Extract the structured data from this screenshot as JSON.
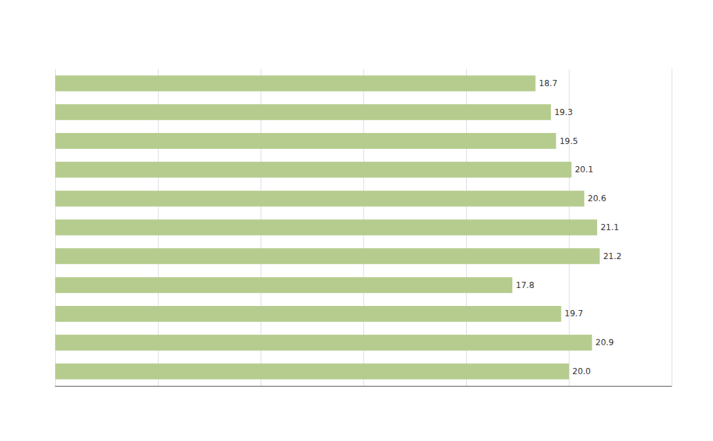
{
  "chart_data": {
    "type": "bar",
    "orientation": "horizontal",
    "categories": [
      null,
      null,
      null,
      null,
      null,
      null,
      null,
      null,
      null,
      null,
      null
    ],
    "values": [
      18.7,
      19.3,
      19.5,
      20.1,
      20.6,
      21.1,
      21.2,
      17.8,
      19.7,
      20.9,
      20.0
    ],
    "value_labels": [
      "18.7",
      "19.3",
      "19.5",
      "20.1",
      "20.6",
      "21.1",
      "21.2",
      "17.8",
      "19.7",
      "20.9",
      "20.0"
    ],
    "color": "#b5cc8e",
    "xlim": [
      0,
      24
    ],
    "xticks": [
      4,
      8,
      12,
      16,
      20,
      24
    ],
    "grid": true,
    "data_labels": true,
    "tick_labels": false
  }
}
